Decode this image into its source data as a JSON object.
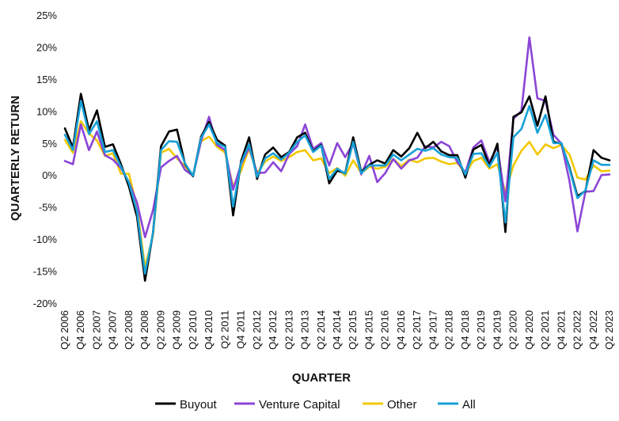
{
  "chart_data": {
    "type": "line",
    "xlabel": "QUARTER",
    "ylabel": "QUARTERLY RETURN",
    "ylim": [
      -20,
      25
    ],
    "y_ticks": [
      25,
      20,
      15,
      10,
      5,
      0,
      -5,
      -10,
      -15,
      -20
    ],
    "y_tick_labels": [
      "25%",
      "20%",
      "15%",
      "10%",
      "5%",
      "0%",
      "-5%",
      "-10%",
      "-15%",
      "-20%"
    ],
    "grid": false,
    "legend_position": "bottom",
    "x": [
      "Q2 2006",
      "Q3 2006",
      "Q4 2006",
      "Q1 2007",
      "Q2 2007",
      "Q3 2007",
      "Q4 2007",
      "Q1 2008",
      "Q2 2008",
      "Q3 2008",
      "Q4 2008",
      "Q1 2009",
      "Q2 2009",
      "Q3 2009",
      "Q4 2009",
      "Q1 2010",
      "Q2 2010",
      "Q3 2010",
      "Q4 2010",
      "Q1 2011",
      "Q2 2011",
      "Q3 2011",
      "Q4 2011",
      "Q1 2012",
      "Q2 2012",
      "Q3 2012",
      "Q4 2012",
      "Q1 2013",
      "Q2 2013",
      "Q3 2013",
      "Q4 2013",
      "Q1 2014",
      "Q2 2014",
      "Q3 2014",
      "Q4 2014",
      "Q1 2015",
      "Q2 2015",
      "Q3 2015",
      "Q4 2015",
      "Q1 2016",
      "Q2 2016",
      "Q3 2016",
      "Q4 2016",
      "Q1 2017",
      "Q2 2017",
      "Q3 2017",
      "Q4 2017",
      "Q1 2018",
      "Q2 2018",
      "Q3 2018",
      "Q4 2018",
      "Q1 2019",
      "Q2 2019",
      "Q3 2019",
      "Q4 2019",
      "Q1 2020",
      "Q2 2020",
      "Q3 2020",
      "Q4 2020",
      "Q1 2021",
      "Q2 2021",
      "Q3 2021",
      "Q4 2021",
      "Q1 2022",
      "Q2 2022",
      "Q3 2022",
      "Q4 2022",
      "Q1 2023",
      "Q2 2023"
    ],
    "x_tick_labels": [
      "Q2 2006",
      "Q4 2006",
      "Q2 2007",
      "Q4 2007",
      "Q2 2008",
      "Q4 2008",
      "Q2 2009",
      "Q4 2009",
      "Q2 2010",
      "Q4 2010",
      "Q2 2011",
      "Q4 2011",
      "Q2 2012",
      "Q4 2012",
      "Q2 2013",
      "Q4 2013",
      "Q2 2014",
      "Q4 2014",
      "Q2 2015",
      "Q4 2015",
      "Q2 2016",
      "Q4 2016",
      "Q2 2017",
      "Q4 2017",
      "Q2 2018",
      "Q4 2018",
      "Q2 2019",
      "Q4 2019",
      "Q2 2020",
      "Q4 2020",
      "Q2 2021",
      "Q4 2021",
      "Q2 2022",
      "Q4 2022",
      "Q2 2023"
    ],
    "series": [
      {
        "name": "Buyout",
        "color": "#000000",
        "values": [
          7.3,
          4.3,
          12.7,
          7.0,
          10.1,
          4.4,
          4.8,
          1.7,
          -1.8,
          -6.5,
          -16.5,
          -9.0,
          4.5,
          6.8,
          7.1,
          1.7,
          -0.2,
          6.0,
          8.3,
          5.5,
          4.6,
          -6.3,
          2.2,
          5.9,
          -0.6,
          3.2,
          4.3,
          2.8,
          3.6,
          5.9,
          6.6,
          3.7,
          4.7,
          -1.3,
          0.7,
          0.3,
          5.9,
          0.5,
          1.6,
          2.3,
          1.8,
          3.9,
          2.9,
          4.2,
          6.6,
          4.2,
          5.2,
          3.7,
          3.1,
          3.1,
          -0.4,
          4.0,
          4.7,
          1.5,
          4.9,
          -8.9,
          9.1,
          9.8,
          12.3,
          7.7,
          12.3,
          5.2,
          4.9,
          1.2,
          -3.3,
          -2.5,
          3.9,
          2.7,
          2.3
        ]
      },
      {
        "name": "Venture Capital",
        "color": "#8b45d6",
        "values": [
          2.2,
          1.7,
          7.9,
          3.9,
          6.8,
          3.1,
          2.4,
          1.1,
          -1.1,
          -4.3,
          -9.7,
          -5.5,
          1.2,
          2.2,
          3.0,
          0.8,
          -0.1,
          5.3,
          9.1,
          4.7,
          3.9,
          -2.3,
          1.7,
          4.3,
          0.3,
          0.4,
          2.0,
          0.6,
          3.3,
          4.5,
          7.9,
          4.1,
          5.0,
          1.5,
          5.0,
          2.8,
          5.0,
          0.1,
          3.0,
          -1.1,
          0.3,
          2.5,
          1.0,
          2.3,
          2.7,
          4.5,
          4.3,
          5.2,
          4.5,
          2.0,
          0.4,
          4.3,
          5.4,
          2.0,
          4.4,
          -4.1,
          8.8,
          10.0,
          21.5,
          12.0,
          11.6,
          6.3,
          4.9,
          -0.9,
          -8.8,
          -2.6,
          -2.5,
          0.0,
          0.1
        ]
      },
      {
        "name": "Other",
        "color": "#f2c800",
        "values": [
          5.5,
          3.5,
          8.4,
          6.5,
          5.4,
          3.0,
          3.4,
          0.2,
          0.2,
          -5.0,
          -14.4,
          -9.4,
          3.5,
          4.1,
          2.6,
          1.4,
          0.0,
          5.3,
          6.0,
          4.4,
          3.5,
          -1.8,
          0.7,
          4.1,
          0.3,
          2.1,
          2.9,
          2.2,
          2.8,
          3.6,
          3.9,
          2.3,
          2.6,
          0.3,
          1.1,
          -0.1,
          2.3,
          0.3,
          1.3,
          1.0,
          1.3,
          2.5,
          1.4,
          2.4,
          2.0,
          2.6,
          2.7,
          2.1,
          1.7,
          1.9,
          0.3,
          2.2,
          2.7,
          1.0,
          1.7,
          -2.7,
          1.5,
          3.8,
          5.2,
          3.2,
          4.8,
          4.2,
          4.7,
          3.2,
          -0.4,
          -0.7,
          1.5,
          0.6,
          0.7
        ]
      },
      {
        "name": "All",
        "color": "#17a0d6",
        "values": [
          6.3,
          3.9,
          11.6,
          6.4,
          8.4,
          3.6,
          3.9,
          1.3,
          -1.2,
          -5.7,
          -15.4,
          -9.1,
          3.9,
          5.3,
          5.2,
          1.8,
          -0.1,
          5.8,
          7.9,
          5.0,
          4.4,
          -4.9,
          1.9,
          4.8,
          -0.3,
          2.6,
          3.4,
          2.4,
          3.5,
          5.2,
          6.2,
          3.6,
          4.6,
          -0.6,
          1.0,
          0.2,
          5.2,
          0.3,
          1.5,
          1.5,
          1.5,
          3.2,
          2.3,
          3.2,
          4.1,
          3.8,
          4.2,
          3.2,
          2.8,
          2.7,
          0.1,
          3.3,
          3.4,
          1.3,
          3.5,
          -7.4,
          5.9,
          7.2,
          10.8,
          6.6,
          9.4,
          5.0,
          5.0,
          1.0,
          -3.6,
          -2.4,
          2.3,
          1.6,
          1.6
        ]
      }
    ]
  }
}
